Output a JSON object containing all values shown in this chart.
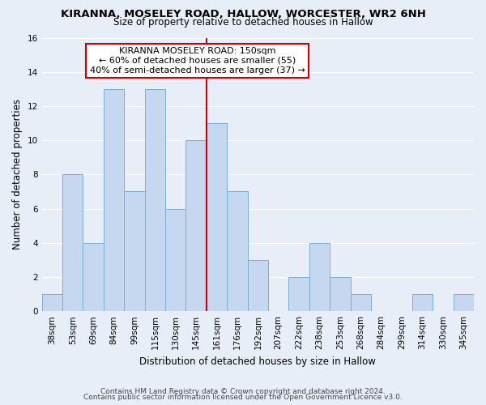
{
  "title": "KIRANNA, MOSELEY ROAD, HALLOW, WORCESTER, WR2 6NH",
  "subtitle": "Size of property relative to detached houses in Hallow",
  "xlabel": "Distribution of detached houses by size in Hallow",
  "ylabel": "Number of detached properties",
  "footer_line1": "Contains HM Land Registry data © Crown copyright and database right 2024.",
  "footer_line2": "Contains public sector information licensed under the Open Government Licence v3.0.",
  "bar_labels": [
    "38sqm",
    "53sqm",
    "69sqm",
    "84sqm",
    "99sqm",
    "115sqm",
    "130sqm",
    "145sqm",
    "161sqm",
    "176sqm",
    "192sqm",
    "207sqm",
    "222sqm",
    "238sqm",
    "253sqm",
    "268sqm",
    "284sqm",
    "299sqm",
    "314sqm",
    "330sqm",
    "345sqm"
  ],
  "bar_values": [
    1,
    8,
    4,
    13,
    7,
    13,
    6,
    10,
    11,
    7,
    3,
    0,
    2,
    4,
    2,
    1,
    0,
    0,
    1,
    0,
    1
  ],
  "bar_color": "#c5d8ef",
  "bar_edge_color": "#7aafd4",
  "highlight_bar_index": 7,
  "ylim": [
    0,
    16
  ],
  "yticks": [
    0,
    2,
    4,
    6,
    8,
    10,
    12,
    14,
    16
  ],
  "vline_color": "#cc0000",
  "annotation_title": "KIRANNA MOSELEY ROAD: 150sqm",
  "annotation_line1": "← 60% of detached houses are smaller (55)",
  "annotation_line2": "40% of semi-detached houses are larger (37) →",
  "annotation_box_facecolor": "#ffffff",
  "annotation_box_edgecolor": "#cc0000",
  "background_color": "#e8eef8",
  "grid_color": "#ffffff",
  "title_fontsize": 9.5,
  "subtitle_fontsize": 8.5,
  "axis_label_fontsize": 8.5,
  "tick_fontsize": 7.5,
  "annotation_fontsize": 8,
  "footer_fontsize": 6.5
}
